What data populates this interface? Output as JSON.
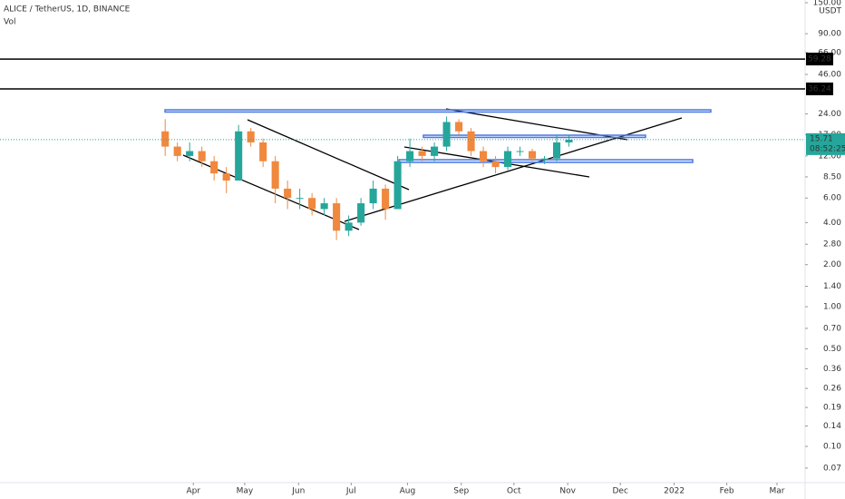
{
  "chart_data": {
    "type": "candlestick",
    "title": "ALICE / TetherUS, 1D, BINANCE",
    "subtitle": "Vol",
    "y_axis_label": "USDT",
    "log_scale": true,
    "up_color": "#26a69a",
    "down_color": "#f0883e",
    "x": [
      0,
      1,
      2,
      3,
      4,
      5,
      6,
      7,
      8,
      9,
      10,
      11,
      12,
      13,
      14,
      15,
      16,
      17,
      18,
      19,
      20,
      21,
      22,
      23,
      24,
      25,
      26,
      27,
      28,
      29,
      30,
      31,
      32,
      33
    ],
    "open": [
      18,
      14,
      12,
      13,
      11,
      9,
      8,
      18,
      15,
      11,
      7,
      6,
      6,
      5,
      5.5,
      3.5,
      4,
      5.5,
      7,
      5,
      11,
      13,
      12,
      14,
      21,
      18,
      13,
      11,
      10,
      13,
      13,
      11.5,
      11.5,
      15
    ],
    "high": [
      22,
      15,
      15,
      14,
      12,
      10,
      20,
      19,
      16,
      12,
      8,
      7,
      6.5,
      6,
      6,
      4.5,
      6,
      8,
      7.5,
      12,
      16,
      14,
      15,
      23,
      22,
      19,
      14,
      12,
      14,
      14,
      13.5,
      12,
      17,
      17
    ],
    "low": [
      12,
      11,
      11,
      10,
      8,
      6.5,
      8,
      14,
      10,
      5.5,
      5,
      5,
      4.5,
      4.5,
      3,
      3.2,
      3.8,
      5,
      4.2,
      5,
      10,
      11,
      11,
      13,
      17,
      12,
      10,
      9,
      9.5,
      12,
      11,
      10.5,
      11,
      14
    ],
    "close": [
      14,
      12,
      13,
      11,
      9,
      8,
      18,
      15,
      11,
      7,
      6,
      6,
      5,
      5.5,
      3.5,
      4,
      5.5,
      7,
      5,
      11,
      13,
      12,
      14,
      21,
      18,
      13,
      11,
      10,
      13,
      13,
      11.5,
      11.5,
      15,
      15.71
    ],
    "xlim": [
      -13.5,
      52.3
    ],
    "xticks": [
      {
        "value": 2.3,
        "label": "Apr"
      },
      {
        "value": 6.5,
        "label": "May"
      },
      {
        "value": 10.9,
        "label": "Jun"
      },
      {
        "value": 15.2,
        "label": "Jul"
      },
      {
        "value": 19.8,
        "label": "Aug"
      },
      {
        "value": 24.2,
        "label": "Sep"
      },
      {
        "value": 28.5,
        "label": "Oct"
      },
      {
        "value": 32.9,
        "label": "Nov"
      },
      {
        "value": 37.2,
        "label": "Dec"
      },
      {
        "value": 41.6,
        "label": "2022"
      },
      {
        "value": 45.9,
        "label": "Feb"
      },
      {
        "value": 50,
        "label": "Mar"
      }
    ],
    "ylim": [
      0.055,
      150
    ],
    "yticks": [
      {
        "value": 150,
        "label": "150.00"
      },
      {
        "value": 90,
        "label": "90.00"
      },
      {
        "value": 66,
        "label": "66.00"
      },
      {
        "value": 46,
        "label": "46.00"
      },
      {
        "value": 24,
        "label": "24.00"
      },
      {
        "value": 17,
        "label": "17.00"
      },
      {
        "value": 12,
        "label": "12.00"
      },
      {
        "value": 8.5,
        "label": "8.50"
      },
      {
        "value": 6,
        "label": "6.00"
      },
      {
        "value": 4,
        "label": "4.00"
      },
      {
        "value": 2.8,
        "label": "2.80"
      },
      {
        "value": 2,
        "label": "2.00"
      },
      {
        "value": 1.4,
        "label": "1.40"
      },
      {
        "value": 1,
        "label": "1.00"
      },
      {
        "value": 0.7,
        "label": "0.70"
      },
      {
        "value": 0.5,
        "label": "0.50"
      },
      {
        "value": 0.36,
        "label": "0.36"
      },
      {
        "value": 0.26,
        "label": "0.26"
      },
      {
        "value": 0.19,
        "label": "0.19"
      },
      {
        "value": 0.14,
        "label": "0.14"
      },
      {
        "value": 0.1,
        "label": "0.10"
      },
      {
        "value": 0.07,
        "label": "0.07"
      }
    ],
    "levels": [
      59.28,
      36.24
    ],
    "last_price": 15.71,
    "countdown": "08:52:25"
  }
}
